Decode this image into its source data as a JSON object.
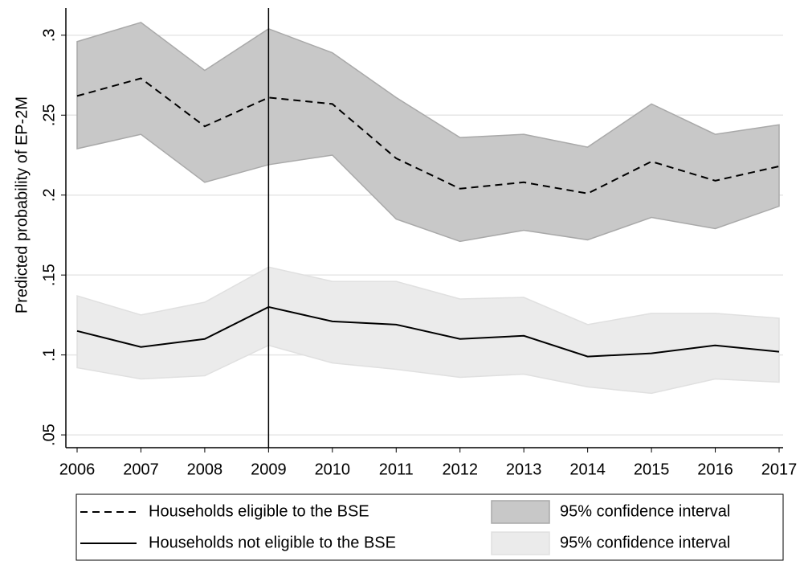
{
  "chart_data": {
    "type": "line",
    "y_label": "Predicted probability of EP-2M",
    "categories": [
      "2006",
      "2007",
      "2008",
      "2009",
      "2010",
      "2011",
      "2012",
      "2013",
      "2014",
      "2015",
      "2016",
      "2017"
    ],
    "ylim": [
      0.042,
      0.317
    ],
    "yticks": [
      {
        "value": 0.05,
        "label": ".05"
      },
      {
        "value": 0.1,
        "label": ".1"
      },
      {
        "value": 0.15,
        "label": ".15"
      },
      {
        "value": 0.2,
        "label": ".2"
      },
      {
        "value": 0.25,
        "label": ".25"
      },
      {
        "value": 0.3,
        "label": ".3"
      }
    ],
    "grid": true,
    "vline": "2009",
    "series": [
      {
        "name": "Households eligible to the BSE",
        "color": "#000000",
        "style": "dashed",
        "values": [
          0.262,
          0.273,
          0.243,
          0.261,
          0.257,
          0.223,
          0.204,
          0.208,
          0.201,
          0.221,
          0.209,
          0.218
        ]
      },
      {
        "name": "Households not eligible to the BSE",
        "color": "#000000",
        "style": "solid",
        "values": [
          0.115,
          0.105,
          0.11,
          0.13,
          0.121,
          0.119,
          0.11,
          0.112,
          0.099,
          0.101,
          0.106,
          0.102
        ]
      }
    ],
    "bands": [
      {
        "name": "95% confidence interval",
        "color": "#c8c8c8",
        "edge": "#a9a9a9",
        "upper": [
          0.296,
          0.308,
          0.278,
          0.304,
          0.289,
          0.261,
          0.236,
          0.238,
          0.23,
          0.257,
          0.238,
          0.244
        ],
        "lower": [
          0.229,
          0.238,
          0.208,
          0.219,
          0.225,
          0.185,
          0.171,
          0.178,
          0.172,
          0.186,
          0.179,
          0.193
        ]
      },
      {
        "name": "95% confidence interval",
        "color": "#ebebeb",
        "edge": "#e0e0e0",
        "upper": [
          0.137,
          0.125,
          0.133,
          0.155,
          0.146,
          0.146,
          0.135,
          0.136,
          0.119,
          0.126,
          0.126,
          0.123
        ],
        "lower": [
          0.092,
          0.085,
          0.087,
          0.106,
          0.095,
          0.091,
          0.086,
          0.088,
          0.08,
          0.076,
          0.085,
          0.083
        ]
      }
    ]
  }
}
